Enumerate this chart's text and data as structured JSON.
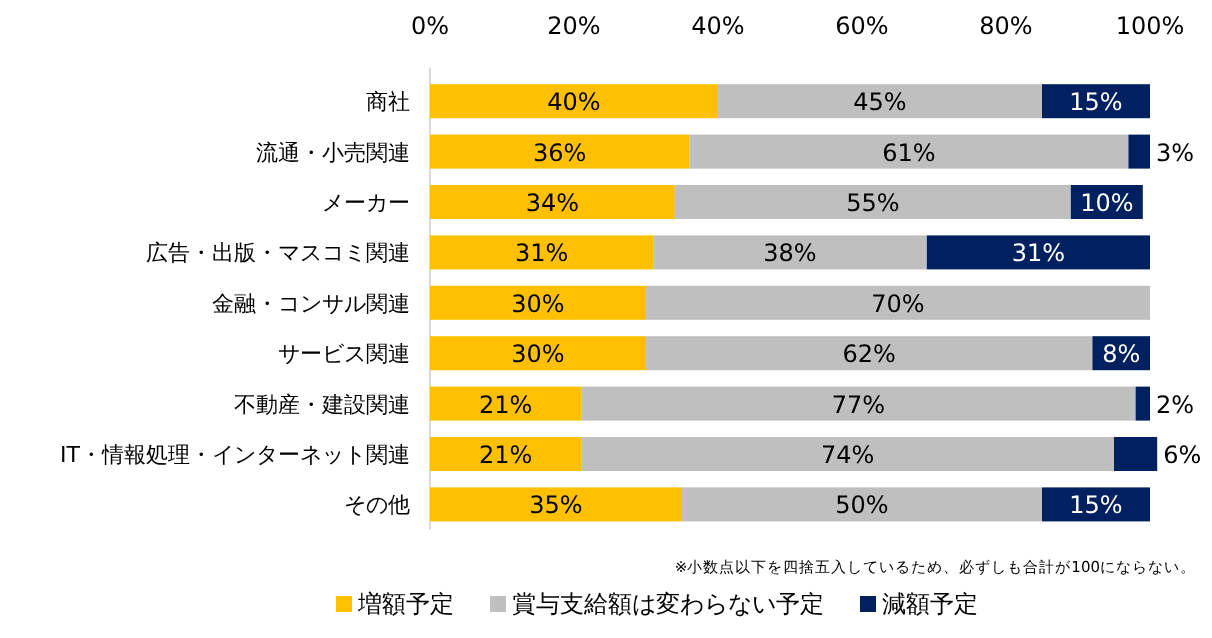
{
  "chart_data": {
    "type": "bar",
    "orientation": "horizontal",
    "stacked": true,
    "categories": [
      "商社",
      "流通・小売関連",
      "メーカー",
      "広告・出版・マスコミ関連",
      "金融・コンサル関連",
      "サービス関連",
      "不動産・建設関連",
      "IT・情報処理・インターネット関連",
      "その他"
    ],
    "series": [
      {
        "name": "増額予定",
        "color": "#ffc000",
        "values": [
          40,
          36,
          34,
          31,
          30,
          30,
          21,
          21,
          35
        ],
        "value_labels": [
          "40%",
          "36%",
          "34%",
          "31%",
          "30%",
          "30%",
          "21%",
          "21%",
          "35%"
        ]
      },
      {
        "name": "賞与支給額は変わらない予定",
        "color": "#bfbfbf",
        "values": [
          45,
          61,
          55,
          38,
          70,
          62,
          77,
          74,
          50
        ],
        "value_labels": [
          "45%",
          "61%",
          "55%",
          "38%",
          "70%",
          "62%",
          "77%",
          "74%",
          "50%"
        ]
      },
      {
        "name": "減額予定",
        "color": "#002060",
        "values": [
          15,
          3,
          10,
          31,
          0,
          8,
          2,
          6,
          15
        ],
        "value_labels": [
          "15%",
          "3%",
          "10%",
          "31%",
          null,
          "8%",
          "2%",
          "6%",
          "15%"
        ]
      }
    ],
    "xlim": [
      0,
      101
    ],
    "xticks": [
      {
        "value": 0,
        "label": "0%"
      },
      {
        "value": 20,
        "label": "20%"
      },
      {
        "value": 40,
        "label": "40%"
      },
      {
        "value": 60,
        "label": "60%"
      },
      {
        "value": 80,
        "label": "80%"
      },
      {
        "value": 100,
        "label": "100%"
      }
    ],
    "legend": "bottom",
    "annotations": [
      "※小数点以下を四捨五入しているため、必ずしも合計が100にならない。"
    ]
  }
}
